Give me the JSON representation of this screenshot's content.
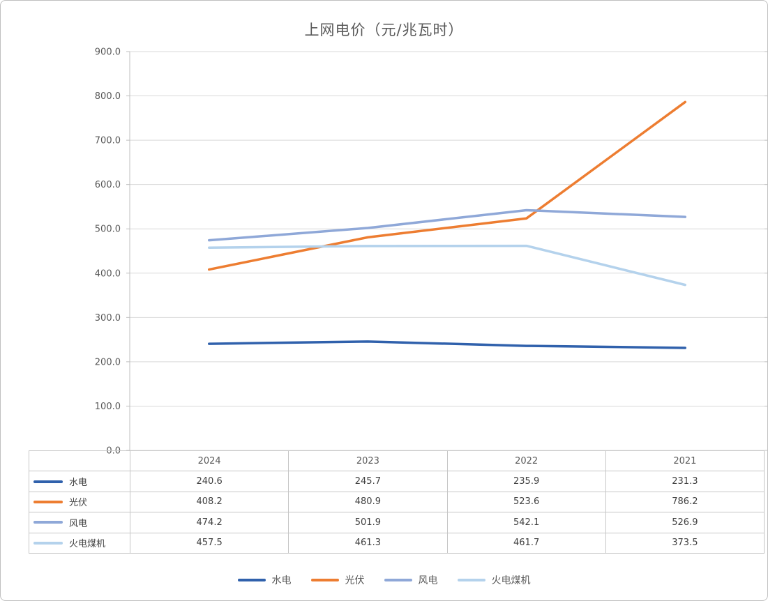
{
  "chart_data": {
    "type": "line",
    "title": "上网电价（元/兆瓦时）",
    "categories": [
      "2024",
      "2023",
      "2022",
      "2021"
    ],
    "series": [
      {
        "name": "水电",
        "color": "#3061AC",
        "values": [
          240.6,
          245.7,
          235.9,
          231.3
        ]
      },
      {
        "name": "光伏",
        "color": "#ED7D31",
        "values": [
          408.2,
          480.9,
          523.6,
          786.2
        ]
      },
      {
        "name": "风电",
        "color": "#8FA8D8",
        "values": [
          474.2,
          501.9,
          542.1,
          526.9
        ]
      },
      {
        "name": "火电煤机",
        "color": "#B4D2EC",
        "values": [
          457.5,
          461.3,
          461.7,
          373.5
        ]
      }
    ],
    "ylim": [
      0,
      900
    ],
    "ytick_step": 100,
    "ytick_labels": [
      "0.0",
      "100.0",
      "200.0",
      "300.0",
      "400.0",
      "500.0",
      "600.0",
      "700.0",
      "800.0",
      "900.0"
    ],
    "xlabel": "",
    "ylabel": "",
    "grid": true,
    "legend_position": "bottom",
    "has_data_table": true,
    "colors": {
      "grid": "#D9D9D9",
      "axis": "#BFBFBF",
      "table_border": "#C6C6C6",
      "text_muted": "#595959",
      "text_value": "#404040"
    }
  }
}
